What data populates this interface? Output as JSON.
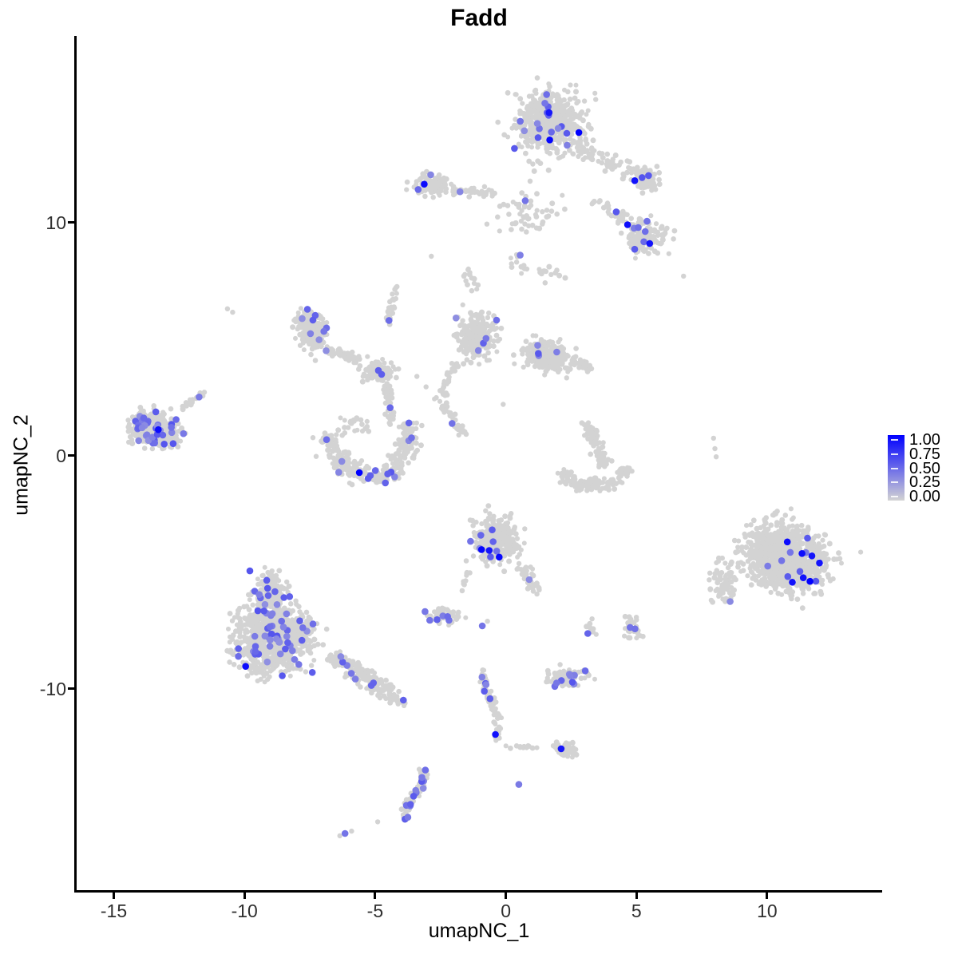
{
  "chart_data": {
    "type": "scatter",
    "title": "Fadd",
    "xlabel": "umapNC_1",
    "ylabel": "umapNC_2",
    "xlim": [
      -16.45,
      14.4
    ],
    "ylim": [
      -18.7,
      18.0
    ],
    "x_ticks": [
      -15,
      -10,
      -5,
      0,
      5,
      10
    ],
    "y_ticks": [
      10,
      0,
      -10
    ],
    "grid": false,
    "legend": {
      "position": "right",
      "ticks": [
        "1.00",
        "0.75",
        "0.50",
        "0.25",
        "0.00"
      ]
    },
    "point_colors": {
      "low": "#D3D3D3",
      "high": "#0000FF"
    },
    "clusters": [
      {
        "name": "top-main",
        "kind": "gauss",
        "cx": 1.7,
        "cy": 14.3,
        "sx": 1.55,
        "sy": 1.5,
        "rot": 0,
        "n": 560,
        "mid": 16,
        "high": 3
      },
      {
        "name": "top-main-trail",
        "kind": "path",
        "pts": [
          [
            2.7,
            13.2
          ],
          [
            4.9,
            12.1
          ]
        ],
        "w": 0.45,
        "n": 60,
        "mid": 0,
        "high": 0
      },
      {
        "name": "top-right-small",
        "kind": "gauss",
        "cx": 5.35,
        "cy": 11.9,
        "sx": 0.6,
        "sy": 0.6,
        "rot": 0,
        "n": 70,
        "mid": 2,
        "high": 1
      },
      {
        "name": "top-right-mid",
        "kind": "gauss",
        "cx": 5.3,
        "cy": 9.4,
        "sx": 0.9,
        "sy": 1.0,
        "rot": -20,
        "n": 150,
        "mid": 6,
        "high": 2
      },
      {
        "name": "top-right-link",
        "kind": "path",
        "pts": [
          [
            3.4,
            11.0
          ],
          [
            4.6,
            10.1
          ]
        ],
        "w": 0.3,
        "n": 35,
        "mid": 1,
        "high": 0
      },
      {
        "name": "top-left-small",
        "kind": "gauss",
        "cx": -2.9,
        "cy": 11.6,
        "sx": 0.8,
        "sy": 0.55,
        "rot": 0,
        "n": 110,
        "mid": 2,
        "high": 1
      },
      {
        "name": "top-left-tail",
        "kind": "path",
        "pts": [
          [
            -2.1,
            11.4
          ],
          [
            -0.4,
            11.2
          ]
        ],
        "w": 0.18,
        "n": 40,
        "mid": 1,
        "high": 0
      },
      {
        "name": "upper-scatter",
        "kind": "gauss",
        "cx": 0.7,
        "cy": 10.5,
        "sx": 1.5,
        "sy": 1.1,
        "rot": 0,
        "n": 55,
        "mid": 1,
        "high": 0
      },
      {
        "name": "upper-scatter-2",
        "kind": "path",
        "pts": [
          [
            0.2,
            8.3
          ],
          [
            2.6,
            7.4
          ]
        ],
        "w": 0.5,
        "n": 25,
        "mid": 0,
        "high": 0
      },
      {
        "name": "mid-left-main",
        "kind": "gauss",
        "cx": -7.45,
        "cy": 5.4,
        "sx": 0.65,
        "sy": 1.05,
        "rot": 12,
        "n": 200,
        "mid": 9,
        "high": 0
      },
      {
        "name": "mid-left-arm-right",
        "kind": "path",
        "pts": [
          [
            -6.85,
            4.5
          ],
          [
            -5.6,
            4.15
          ]
        ],
        "w": 0.22,
        "n": 50,
        "mid": 0,
        "high": 0
      },
      {
        "name": "mid-left-blob",
        "kind": "gauss",
        "cx": -4.9,
        "cy": 3.6,
        "sx": 0.75,
        "sy": 0.55,
        "rot": 0,
        "n": 90,
        "mid": 2,
        "high": 0
      },
      {
        "name": "mid-left-arm-down",
        "kind": "path",
        "pts": [
          [
            -4.6,
            3.1
          ],
          [
            -4.35,
            1.4
          ]
        ],
        "w": 0.18,
        "n": 40,
        "mid": 1,
        "high": 0
      },
      {
        "name": "mid-left-arm-up",
        "kind": "path",
        "pts": [
          [
            -4.55,
            5.6
          ],
          [
            -4.2,
            7.3
          ]
        ],
        "w": 0.15,
        "n": 28,
        "mid": 1,
        "high": 0
      },
      {
        "name": "center-left-lobe",
        "kind": "gauss",
        "cx": -1.15,
        "cy": 5.1,
        "sx": 0.8,
        "sy": 1.1,
        "rot": 0,
        "n": 230,
        "mid": 5,
        "high": 0
      },
      {
        "name": "center-right-lobe",
        "kind": "gauss",
        "cx": 1.6,
        "cy": 4.25,
        "sx": 1.1,
        "sy": 0.7,
        "rot": -10,
        "n": 280,
        "mid": 4,
        "high": 0
      },
      {
        "name": "center-tail-right",
        "kind": "path",
        "pts": [
          [
            2.7,
            4.0
          ],
          [
            3.3,
            3.7
          ]
        ],
        "w": 0.25,
        "n": 25,
        "mid": 0,
        "high": 0
      },
      {
        "name": "center-tail-down",
        "kind": "path",
        "pts": [
          [
            -1.9,
            4.0
          ],
          [
            -2.4,
            2.6
          ]
        ],
        "w": 0.22,
        "n": 30,
        "mid": 0,
        "high": 0
      },
      {
        "name": "center-link-up",
        "kind": "path",
        "pts": [
          [
            -1.5,
            8.0
          ],
          [
            -1.1,
            6.9
          ]
        ],
        "w": 0.3,
        "n": 14,
        "mid": 0,
        "high": 0
      },
      {
        "name": "far-left",
        "kind": "gauss",
        "cx": -13.4,
        "cy": 1.15,
        "sx": 1.15,
        "sy": 0.85,
        "rot": -15,
        "n": 300,
        "mid": 34,
        "high": 1
      },
      {
        "name": "far-left-arm",
        "kind": "path",
        "pts": [
          [
            -12.4,
            2.0
          ],
          [
            -11.5,
            2.7
          ]
        ],
        "w": 0.16,
        "n": 20,
        "mid": 1,
        "high": 0
      },
      {
        "name": "crescent",
        "kind": "path",
        "pts": [
          [
            -6.9,
            0.9
          ],
          [
            -6.3,
            -0.4
          ],
          [
            -5.0,
            -1.0
          ],
          [
            -4.0,
            -0.4
          ],
          [
            -3.6,
            1.3
          ]
        ],
        "w": 0.48,
        "n": 300,
        "mid": 13,
        "high": 1
      },
      {
        "name": "crescent-top-scatter",
        "kind": "gauss",
        "cx": -5.8,
        "cy": 1.3,
        "sx": 0.8,
        "sy": 0.5,
        "rot": 0,
        "n": 25,
        "mid": 0,
        "high": 0
      },
      {
        "name": "diag-trail",
        "kind": "path",
        "pts": [
          [
            -2.7,
            2.6
          ],
          [
            -1.5,
            0.8
          ]
        ],
        "w": 0.2,
        "n": 30,
        "mid": 1,
        "high": 0
      },
      {
        "name": "hook-top",
        "kind": "path",
        "pts": [
          [
            3.1,
            1.4
          ],
          [
            3.5,
            0.4
          ],
          [
            3.75,
            -0.4
          ]
        ],
        "w": 0.3,
        "n": 85,
        "mid": 0,
        "high": 0
      },
      {
        "name": "hook-bottom",
        "kind": "path",
        "pts": [
          [
            2.1,
            -0.7
          ],
          [
            2.9,
            -1.3
          ],
          [
            4.2,
            -1.1
          ],
          [
            4.65,
            -0.5
          ]
        ],
        "w": 0.35,
        "n": 130,
        "mid": 0,
        "high": 0
      },
      {
        "name": "center-bottom",
        "kind": "gauss",
        "cx": -0.35,
        "cy": -3.6,
        "sx": 1.05,
        "sy": 1.1,
        "rot": 0,
        "n": 280,
        "mid": 7,
        "high": 3
      },
      {
        "name": "center-bottom-arm",
        "kind": "path",
        "pts": [
          [
            0.6,
            -4.7
          ],
          [
            1.25,
            -5.9
          ]
        ],
        "w": 0.25,
        "n": 35,
        "mid": 1,
        "high": 0
      },
      {
        "name": "center-bottom-dash",
        "kind": "path",
        "pts": [
          [
            -1.4,
            -5.0
          ],
          [
            -1.7,
            -5.8
          ]
        ],
        "w": 0.12,
        "n": 9,
        "mid": 0,
        "high": 0
      },
      {
        "name": "small-mid-bottom",
        "kind": "gauss",
        "cx": -2.4,
        "cy": -6.9,
        "sx": 0.8,
        "sy": 0.42,
        "rot": -10,
        "n": 65,
        "mid": 6,
        "high": 0
      },
      {
        "name": "tiny-right",
        "kind": "gauss",
        "cx": 3.2,
        "cy": -7.5,
        "sx": 0.22,
        "sy": 0.32,
        "rot": 0,
        "n": 8,
        "mid": 1,
        "high": 0
      },
      {
        "name": "small-right",
        "kind": "gauss",
        "cx": 4.85,
        "cy": -7.4,
        "sx": 0.42,
        "sy": 0.48,
        "rot": 20,
        "n": 30,
        "mid": 2,
        "high": 0
      },
      {
        "name": "bottom-left-main",
        "kind": "gauss",
        "cx": -8.9,
        "cy": -7.8,
        "sx": 1.65,
        "sy": 1.6,
        "rot": 15,
        "n": 850,
        "mid": 46,
        "high": 1
      },
      {
        "name": "bottom-left-top-arm",
        "kind": "gauss",
        "cx": -9.0,
        "cy": -5.8,
        "sx": 0.65,
        "sy": 0.95,
        "rot": 10,
        "n": 150,
        "mid": 12,
        "high": 0
      },
      {
        "name": "bottom-left-tail",
        "kind": "path",
        "pts": [
          [
            -6.8,
            -8.6
          ],
          [
            -5.6,
            -9.3
          ],
          [
            -4.4,
            -10.3
          ],
          [
            -3.95,
            -10.7
          ]
        ],
        "w": 0.42,
        "n": 170,
        "mid": 8,
        "high": 0
      },
      {
        "name": "right-big",
        "kind": "gauss",
        "cx": 10.7,
        "cy": -4.4,
        "sx": 1.95,
        "sy": 1.5,
        "rot": -28,
        "n": 950,
        "mid": 8,
        "high": 7
      },
      {
        "name": "right-big-left-fringe",
        "kind": "gauss",
        "cx": 8.35,
        "cy": -5.5,
        "sx": 0.6,
        "sy": 0.9,
        "rot": 0,
        "n": 70,
        "mid": 1,
        "high": 0
      },
      {
        "name": "chain-down",
        "kind": "path",
        "pts": [
          [
            -0.9,
            -9.2
          ],
          [
            -0.7,
            -10.2
          ],
          [
            -0.3,
            -11.2
          ],
          [
            -0.35,
            -12.25
          ]
        ],
        "w": 0.17,
        "n": 75,
        "mid": 5,
        "high": 1
      },
      {
        "name": "chain-right-trail",
        "kind": "path",
        "pts": [
          [
            -0.1,
            -12.4
          ],
          [
            1.6,
            -12.6
          ]
        ],
        "w": 0.12,
        "n": 12,
        "mid": 0,
        "high": 0
      },
      {
        "name": "small-bottom-right",
        "kind": "gauss",
        "cx": 2.3,
        "cy": -9.5,
        "sx": 0.85,
        "sy": 0.48,
        "rot": 5,
        "n": 75,
        "mid": 10,
        "high": 0
      },
      {
        "name": "bottom-blob",
        "kind": "gauss",
        "cx": 2.25,
        "cy": -12.6,
        "sx": 0.5,
        "sy": 0.38,
        "rot": 0,
        "n": 45,
        "mid": 0,
        "high": 1
      },
      {
        "name": "banana",
        "kind": "path",
        "pts": [
          [
            -3.15,
            -13.5
          ],
          [
            -3.3,
            -14.3
          ],
          [
            -3.75,
            -15.1
          ],
          [
            -3.85,
            -15.6
          ]
        ],
        "w": 0.22,
        "n": 65,
        "mid": 13,
        "high": 0
      }
    ],
    "singles": [
      {
        "x": -6.15,
        "y": -16.2,
        "v": 0.45
      },
      {
        "x": -6.35,
        "y": -16.3,
        "v": 0
      },
      {
        "x": -5.9,
        "y": -16.1,
        "v": 0
      },
      {
        "x": -4.9,
        "y": -15.7,
        "v": 0
      },
      {
        "x": 0.5,
        "y": -14.1,
        "v": 0.42
      },
      {
        "x": -0.9,
        "y": -7.3,
        "v": 0.45
      },
      {
        "x": -0.7,
        "y": -7.1,
        "v": 0
      },
      {
        "x": -2.85,
        "y": 8.55,
        "v": 0
      },
      {
        "x": 0.55,
        "y": 8.6,
        "v": 0.4
      },
      {
        "x": -10.65,
        "y": 6.3,
        "v": 0
      },
      {
        "x": -10.45,
        "y": 6.15,
        "v": 0
      },
      {
        "x": 7.95,
        "y": 0.75,
        "v": 0
      },
      {
        "x": 8.0,
        "y": 0.3,
        "v": 0
      },
      {
        "x": 8.05,
        "y": -0.05,
        "v": 0
      },
      {
        "x": 6.8,
        "y": 7.7,
        "v": 0
      },
      {
        "x": -0.1,
        "y": 2.2,
        "v": 0
      },
      {
        "x": -3.4,
        "y": 3.4,
        "v": 0
      },
      {
        "x": -3.05,
        "y": 2.95,
        "v": 0
      },
      {
        "x": 3.3,
        "y": -7.0,
        "v": 0
      }
    ]
  }
}
